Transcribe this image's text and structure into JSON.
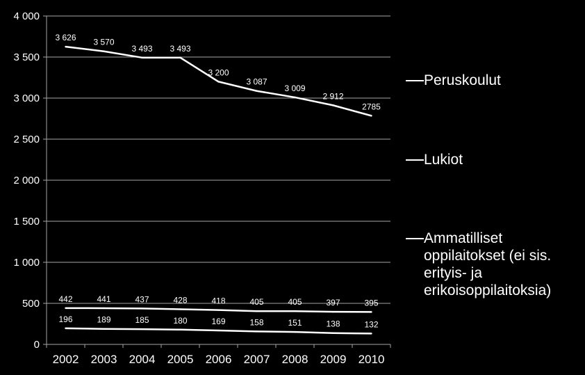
{
  "chart_data": {
    "type": "line",
    "categories": [
      "2002",
      "2003",
      "2004",
      "2005",
      "2006",
      "2007",
      "2008",
      "2009",
      "2010"
    ],
    "ylim": [
      0,
      4000
    ],
    "yticks": [
      0,
      500,
      1000,
      1500,
      2000,
      2500,
      3000,
      3500,
      4000
    ],
    "ytick_labels": [
      "0",
      "500",
      "1 000",
      "1 500",
      "2 000",
      "2 500",
      "3 000",
      "3 500",
      "4 000"
    ],
    "grid": true,
    "legend_position": "right",
    "series": [
      {
        "name": "Peruskoulut",
        "values": [
          3626,
          3570,
          3493,
          3493,
          3200,
          3087,
          3009,
          2912,
          2785
        ],
        "labels": [
          "3 626",
          "3 570",
          "3 493",
          "3 493",
          "3 200",
          "3 087",
          "3 009",
          "2 912",
          "2785"
        ],
        "color": "#ffffff"
      },
      {
        "name": "Lukiot",
        "values": [
          442,
          441,
          437,
          428,
          418,
          405,
          405,
          397,
          395
        ],
        "labels": [
          "442",
          "441",
          "437",
          "428",
          "418",
          "405",
          "405",
          "397",
          "395"
        ],
        "color": "#ffffff"
      },
      {
        "name": "Ammatilliset oppilaitokset (ei sis. erityis- ja erikoisoppilaitoksia)",
        "values": [
          196,
          189,
          185,
          180,
          169,
          158,
          151,
          138,
          132
        ],
        "labels": [
          "196",
          "189",
          "185",
          "180",
          "169",
          "158",
          "151",
          "138",
          "132"
        ],
        "color": "#ffffff"
      }
    ]
  },
  "colors": {
    "background": "#000000",
    "grid": "#a6a6a6",
    "text": "#ffffff"
  }
}
